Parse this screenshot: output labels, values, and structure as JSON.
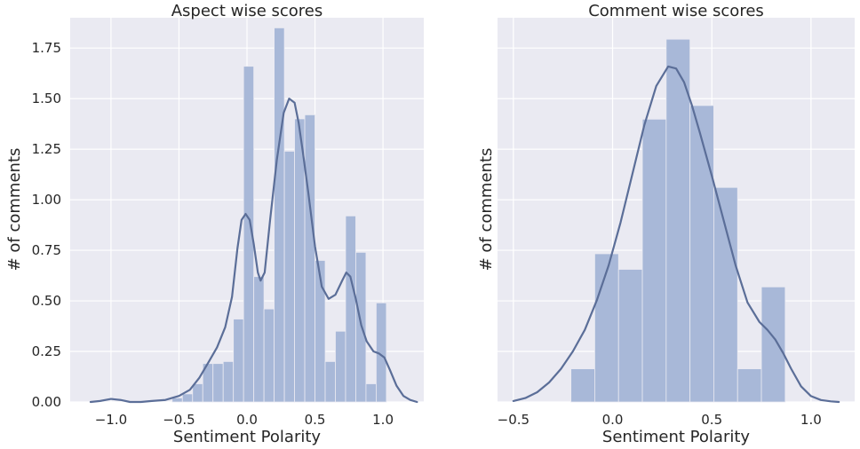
{
  "chart_data": [
    {
      "type": "bar",
      "title": "Aspect wise scores",
      "xlabel": "Sentiment Polarity",
      "ylabel": "# of comments",
      "xlim": [
        -1.3,
        1.3
      ],
      "ylim": [
        0,
        1.9
      ],
      "grid": true,
      "x_ticks": [
        -1.0,
        -0.5,
        0.0,
        0.5,
        1.0
      ],
      "x_tick_labels": [
        "−1.0",
        "−0.5",
        "0.0",
        "0.5",
        "1.0"
      ],
      "y_ticks": [
        0.0,
        0.25,
        0.5,
        0.75,
        1.0,
        1.25,
        1.5,
        1.75
      ],
      "y_tick_labels": [
        "0.00",
        "0.25",
        "0.50",
        "0.75",
        "1.00",
        "1.25",
        "1.50",
        "1.75"
      ],
      "bins": [
        {
          "x0": -1.0,
          "x1": -0.925,
          "value": 0.0
        },
        {
          "x0": -0.925,
          "x1": -0.85,
          "value": 0.0
        },
        {
          "x0": -0.85,
          "x1": -0.775,
          "value": 0.0
        },
        {
          "x0": -0.775,
          "x1": -0.7,
          "value": 0.0
        },
        {
          "x0": -0.7,
          "x1": -0.625,
          "value": 0.0
        },
        {
          "x0": -0.625,
          "x1": -0.55,
          "value": 0.0
        },
        {
          "x0": -0.55,
          "x1": -0.475,
          "value": 0.02
        },
        {
          "x0": -0.475,
          "x1": -0.4,
          "value": 0.04
        },
        {
          "x0": -0.4,
          "x1": -0.325,
          "value": 0.09
        },
        {
          "x0": -0.325,
          "x1": -0.25,
          "value": 0.19
        },
        {
          "x0": -0.25,
          "x1": -0.175,
          "value": 0.19
        },
        {
          "x0": -0.175,
          "x1": -0.1,
          "value": 0.2
        },
        {
          "x0": -0.1,
          "x1": -0.025,
          "value": 0.41
        },
        {
          "x0": -0.025,
          "x1": 0.05,
          "value": 1.66
        },
        {
          "x0": 0.05,
          "x1": 0.125,
          "value": 0.62
        },
        {
          "x0": 0.125,
          "x1": 0.2,
          "value": 0.46
        },
        {
          "x0": 0.2,
          "x1": 0.275,
          "value": 1.85
        },
        {
          "x0": 0.275,
          "x1": 0.35,
          "value": 1.24
        },
        {
          "x0": 0.35,
          "x1": 0.425,
          "value": 1.4
        },
        {
          "x0": 0.425,
          "x1": 0.5,
          "value": 1.42
        },
        {
          "x0": 0.5,
          "x1": 0.575,
          "value": 0.7
        },
        {
          "x0": 0.575,
          "x1": 0.65,
          "value": 0.2
        },
        {
          "x0": 0.65,
          "x1": 0.725,
          "value": 0.35
        },
        {
          "x0": 0.725,
          "x1": 0.8,
          "value": 0.92
        },
        {
          "x0": 0.8,
          "x1": 0.875,
          "value": 0.74
        },
        {
          "x0": 0.875,
          "x1": 0.95,
          "value": 0.09
        },
        {
          "x0": 0.95,
          "x1": 1.025,
          "value": 0.49
        }
      ],
      "kde": {
        "x": [
          -1.15,
          -1.08,
          -1.0,
          -0.93,
          -0.86,
          -0.78,
          -0.7,
          -0.6,
          -0.5,
          -0.42,
          -0.35,
          -0.28,
          -0.22,
          -0.16,
          -0.11,
          -0.07,
          -0.04,
          -0.01,
          0.02,
          0.05,
          0.08,
          0.1,
          0.13,
          0.17,
          0.22,
          0.27,
          0.31,
          0.35,
          0.38,
          0.41,
          0.45,
          0.5,
          0.55,
          0.6,
          0.65,
          0.7,
          0.73,
          0.76,
          0.8,
          0.84,
          0.88,
          0.93,
          0.97,
          1.01,
          1.05,
          1.1,
          1.15,
          1.2,
          1.25
        ],
        "y": [
          0.0,
          0.005,
          0.015,
          0.01,
          0.0,
          0.0,
          0.005,
          0.01,
          0.03,
          0.06,
          0.12,
          0.2,
          0.27,
          0.37,
          0.52,
          0.76,
          0.9,
          0.93,
          0.9,
          0.78,
          0.64,
          0.6,
          0.64,
          0.9,
          1.2,
          1.43,
          1.5,
          1.48,
          1.38,
          1.24,
          1.04,
          0.77,
          0.57,
          0.51,
          0.53,
          0.6,
          0.64,
          0.62,
          0.51,
          0.38,
          0.3,
          0.25,
          0.24,
          0.22,
          0.16,
          0.08,
          0.03,
          0.01,
          0.0
        ]
      }
    },
    {
      "type": "bar",
      "title": "Comment wise scores",
      "xlabel": "Sentiment Polarity",
      "ylabel": "# of comments",
      "xlim": [
        -0.58,
        1.22
      ],
      "ylim": [
        0,
        1.97
      ],
      "grid": true,
      "x_ticks": [
        -0.5,
        0.0,
        0.5,
        1.0
      ],
      "x_tick_labels": [
        "−0.5",
        "0.0",
        "0.5",
        "1.0"
      ],
      "y_tick_labels": [],
      "bins": [
        {
          "x0": -0.21,
          "x1": -0.09,
          "value": 0.17
        },
        {
          "x0": -0.09,
          "x1": 0.03,
          "value": 0.76
        },
        {
          "x0": 0.03,
          "x1": 0.15,
          "value": 0.68
        },
        {
          "x0": 0.15,
          "x1": 0.27,
          "value": 1.45
        },
        {
          "x0": 0.27,
          "x1": 0.39,
          "value": 1.86
        },
        {
          "x0": 0.39,
          "x1": 0.51,
          "value": 1.52
        },
        {
          "x0": 0.51,
          "x1": 0.63,
          "value": 1.1
        },
        {
          "x0": 0.63,
          "x1": 0.75,
          "value": 0.17
        },
        {
          "x0": 0.75,
          "x1": 0.87,
          "value": 0.59
        }
      ],
      "kde": {
        "x": [
          -0.5,
          -0.44,
          -0.38,
          -0.32,
          -0.26,
          -0.2,
          -0.14,
          -0.08,
          -0.02,
          0.04,
          0.1,
          0.16,
          0.22,
          0.28,
          0.32,
          0.36,
          0.4,
          0.44,
          0.5,
          0.56,
          0.62,
          0.68,
          0.74,
          0.78,
          0.82,
          0.86,
          0.9,
          0.95,
          1.0,
          1.05,
          1.1,
          1.14
        ],
        "y": [
          0.005,
          0.02,
          0.05,
          0.1,
          0.17,
          0.26,
          0.37,
          0.52,
          0.7,
          0.92,
          1.17,
          1.42,
          1.62,
          1.72,
          1.71,
          1.64,
          1.52,
          1.38,
          1.16,
          0.93,
          0.7,
          0.51,
          0.41,
          0.37,
          0.32,
          0.25,
          0.17,
          0.08,
          0.03,
          0.01,
          0.003,
          0.0
        ]
      }
    }
  ]
}
